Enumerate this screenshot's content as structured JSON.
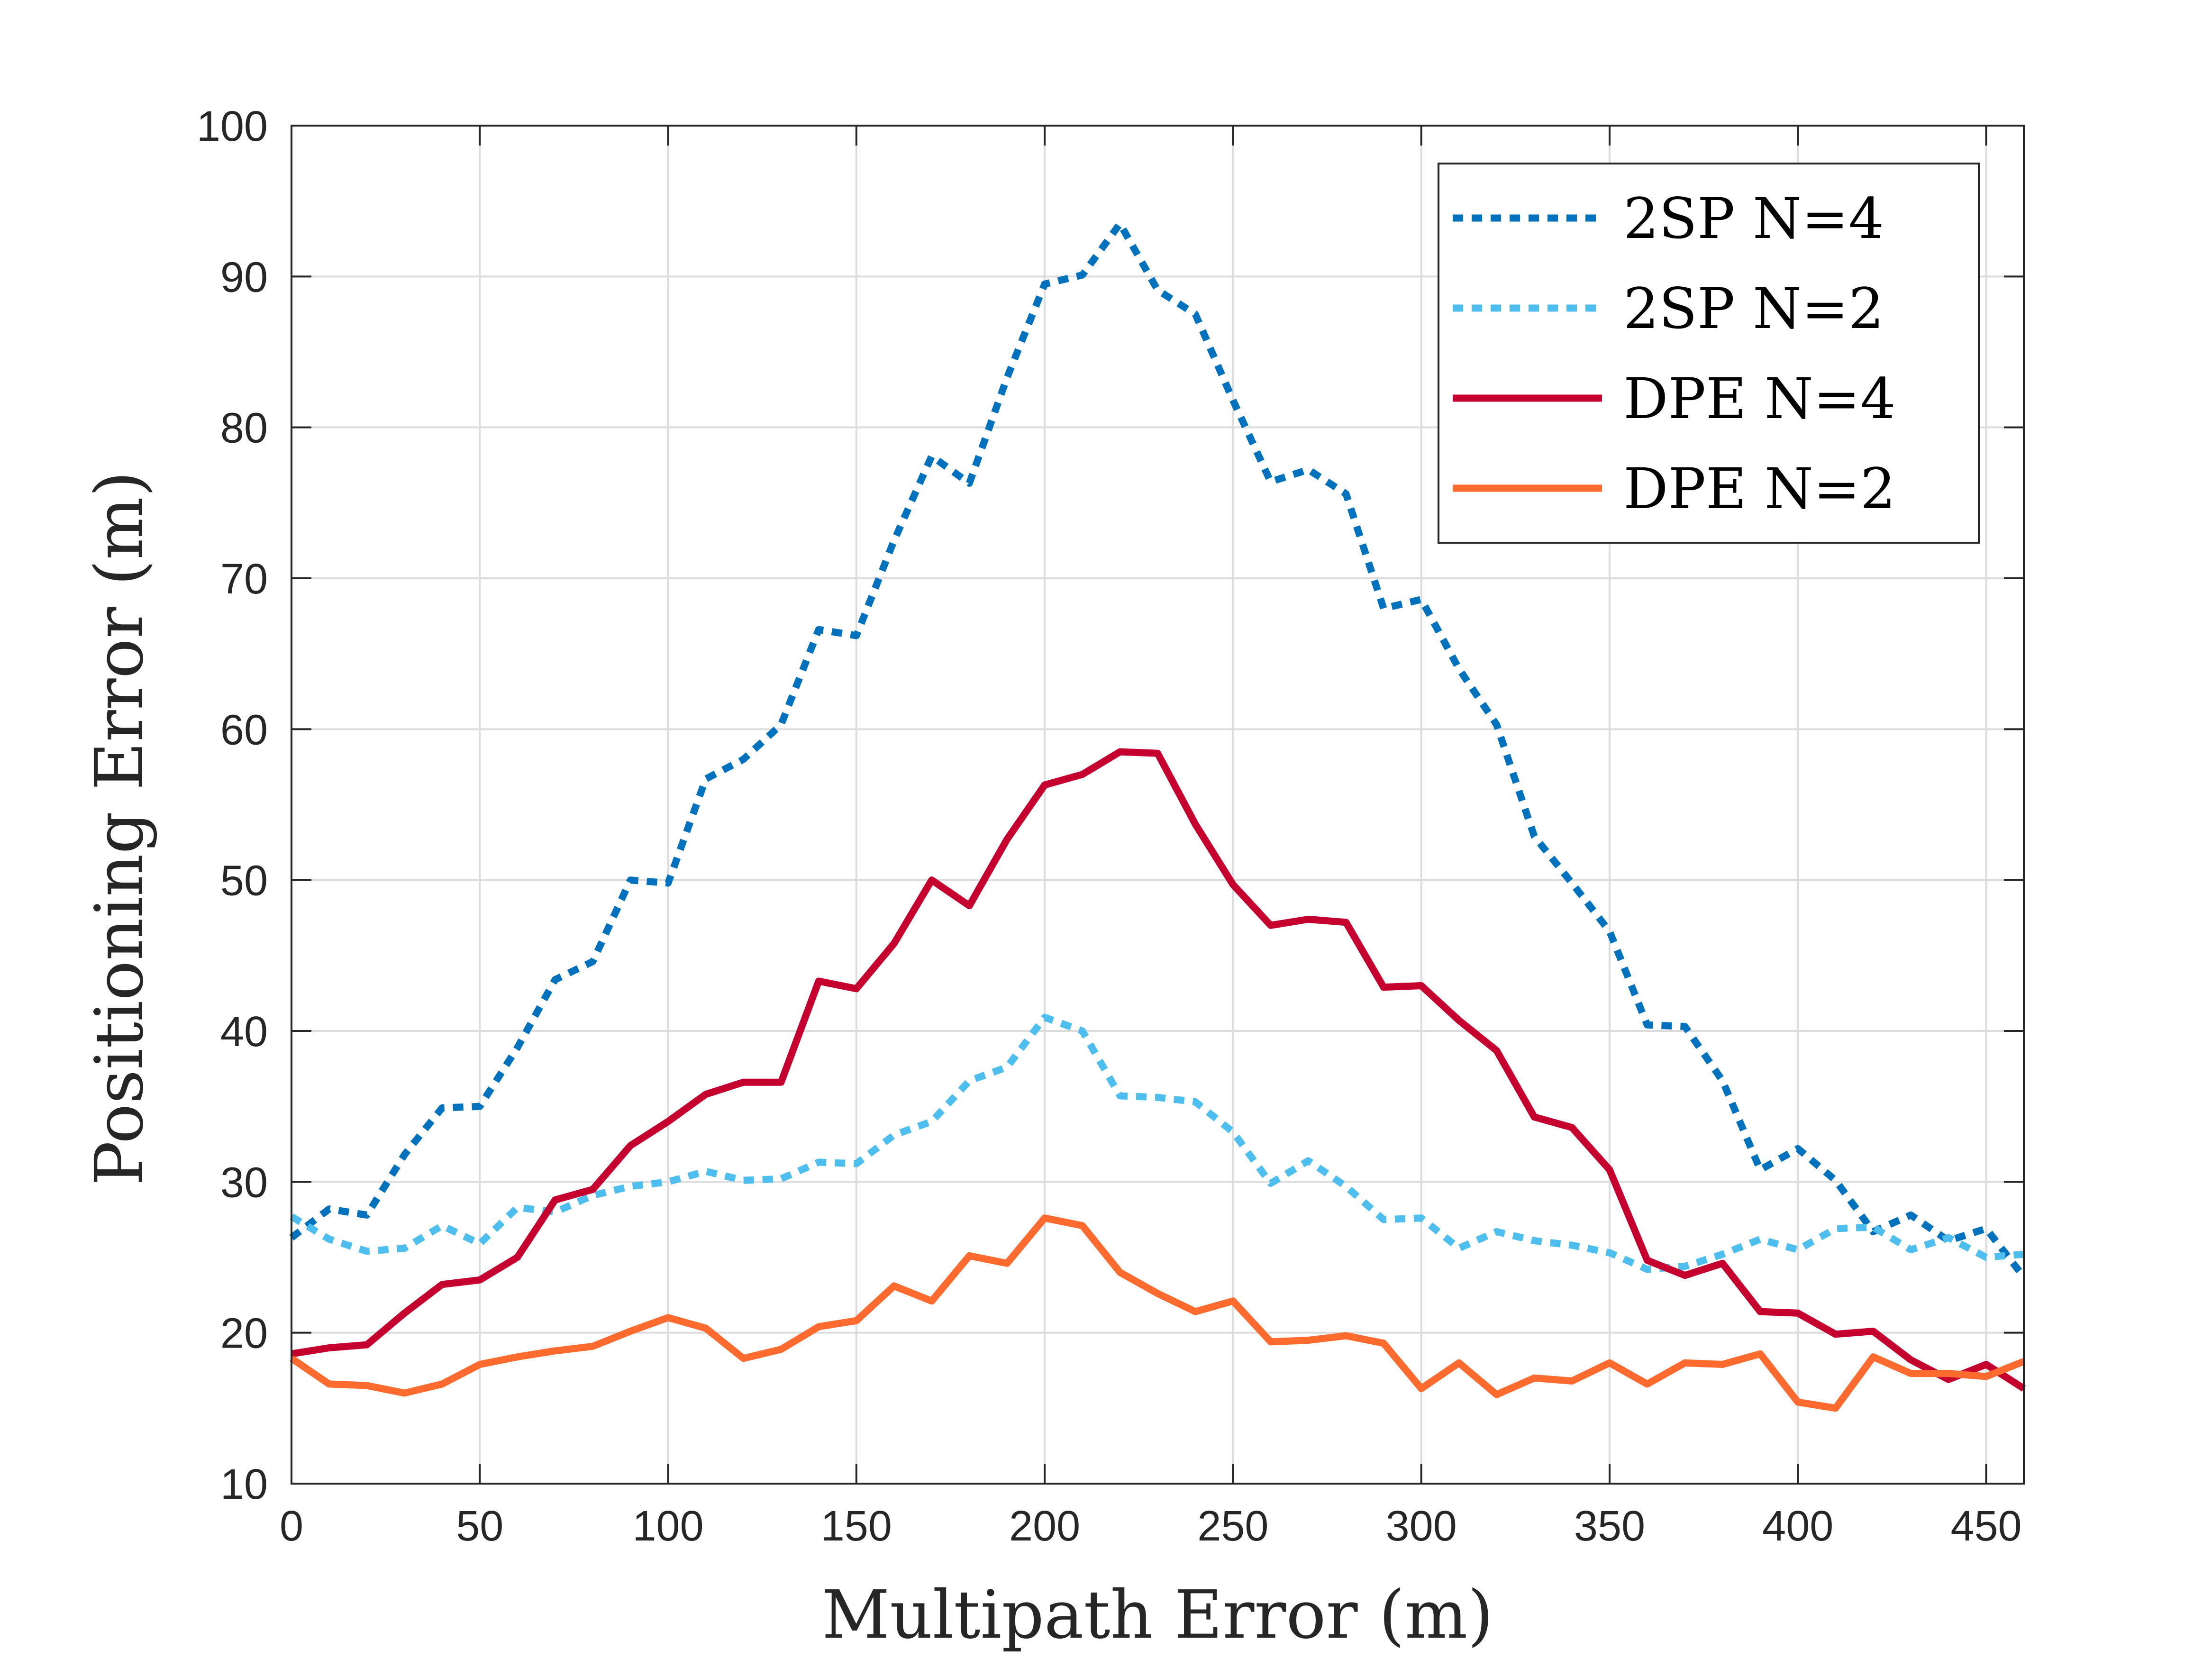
{
  "chart_data": {
    "type": "line",
    "title": "",
    "xlabel": "Multipath Error (m)",
    "ylabel": "Positioning Error (m)",
    "xlim": [
      0,
      460
    ],
    "ylim": [
      10,
      100
    ],
    "xticks": [
      0,
      50,
      100,
      150,
      200,
      250,
      300,
      350,
      400,
      450
    ],
    "xtick_labels": [
      "0",
      "50",
      "100",
      "150",
      "200",
      "250",
      "300",
      "350",
      "400",
      "450"
    ],
    "yticks": [
      10,
      20,
      30,
      40,
      50,
      60,
      70,
      80,
      90,
      100
    ],
    "ytick_labels": [
      "10",
      "20",
      "30",
      "40",
      "50",
      "60",
      "70",
      "80",
      "90",
      "100"
    ],
    "grid": true,
    "legend_position": "top-right",
    "x": [
      0,
      10,
      20,
      30,
      40,
      50,
      60,
      70,
      80,
      90,
      100,
      110,
      120,
      130,
      140,
      150,
      160,
      170,
      180,
      190,
      200,
      210,
      220,
      230,
      240,
      250,
      260,
      270,
      280,
      290,
      300,
      310,
      320,
      330,
      340,
      350,
      360,
      370,
      380,
      390,
      400,
      410,
      420,
      430,
      440,
      450,
      460
    ],
    "series": [
      {
        "name": "2SP N=4",
        "color": "#0072BD",
        "style": "dotted",
        "values": [
          26.3,
          28.2,
          27.8,
          31.8,
          34.9,
          35.0,
          38.9,
          43.4,
          44.6,
          50.0,
          49.8,
          56.7,
          58.0,
          60.3,
          66.6,
          66.2,
          72.5,
          78.1,
          76.3,
          83.3,
          89.5,
          90.1,
          93.5,
          89.1,
          87.5,
          81.8,
          76.4,
          77.2,
          75.6,
          68.0,
          68.6,
          64.0,
          60.3,
          52.9,
          49.8,
          46.6,
          40.4,
          40.3,
          36.7,
          30.8,
          32.2,
          30.1,
          26.7,
          27.8,
          26.1,
          26.9,
          23.7
        ]
      },
      {
        "name": "2SP N=2",
        "color": "#4DBEEE",
        "style": "dotted",
        "values": [
          27.7,
          26.2,
          25.4,
          25.6,
          27.1,
          25.9,
          28.3,
          28.0,
          29.1,
          29.7,
          30.0,
          30.7,
          30.1,
          30.2,
          31.3,
          31.2,
          33.1,
          34.0,
          36.7,
          37.6,
          40.9,
          40.0,
          35.7,
          35.6,
          35.3,
          33.3,
          29.9,
          31.4,
          29.7,
          27.5,
          27.6,
          25.6,
          26.7,
          26.1,
          25.8,
          25.3,
          24.2,
          24.4,
          25.2,
          26.2,
          25.5,
          26.9,
          27.0,
          25.5,
          26.3,
          25.0,
          25.2
        ]
      },
      {
        "name": "DPE N=4",
        "color": "#C5002E",
        "style": "solid",
        "values": [
          18.6,
          19.0,
          19.2,
          21.3,
          23.2,
          23.5,
          25.0,
          28.8,
          29.5,
          32.4,
          34.0,
          35.8,
          36.6,
          36.6,
          43.3,
          42.8,
          45.8,
          50.0,
          48.3,
          52.7,
          56.3,
          57.0,
          58.5,
          58.4,
          53.7,
          49.7,
          47.0,
          47.4,
          47.2,
          42.9,
          43.0,
          40.7,
          38.7,
          34.3,
          33.6,
          30.8,
          24.8,
          23.8,
          24.6,
          21.4,
          21.3,
          19.9,
          20.1,
          18.2,
          16.9,
          17.9,
          16.3
        ]
      },
      {
        "name": "DPE N=2",
        "color": "#FF6A2F",
        "style": "solid",
        "values": [
          18.3,
          16.6,
          16.5,
          16.0,
          16.6,
          17.9,
          18.4,
          18.8,
          19.1,
          20.1,
          21.0,
          20.3,
          18.3,
          18.9,
          20.4,
          20.8,
          23.1,
          22.1,
          25.1,
          24.6,
          27.6,
          27.1,
          24.0,
          22.6,
          21.4,
          22.1,
          19.4,
          19.5,
          19.8,
          19.3,
          16.3,
          18.0,
          15.9,
          17.0,
          16.8,
          18.0,
          16.6,
          18.0,
          17.9,
          18.6,
          15.4,
          15.0,
          18.4,
          17.3,
          17.3,
          17.1,
          18.1
        ]
      }
    ]
  }
}
